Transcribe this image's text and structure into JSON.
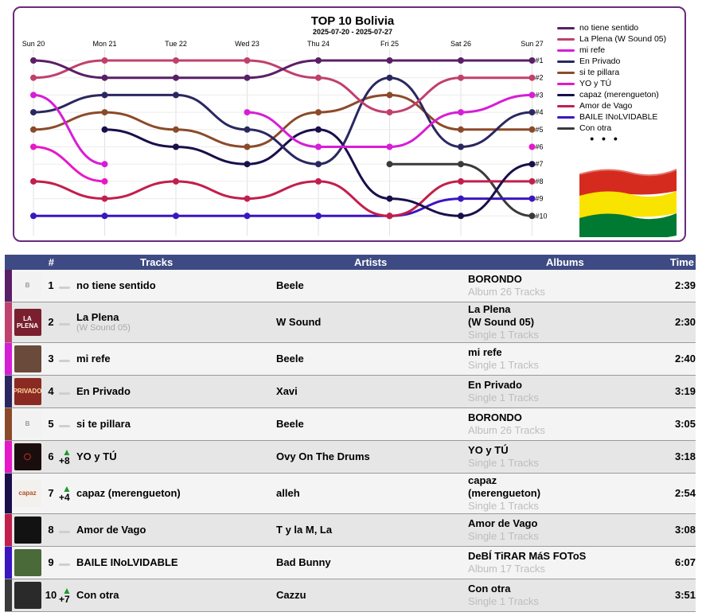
{
  "chart": {
    "title": "TOP 10 Bolivia",
    "subtitle": "2025-07-20 - 2025-07-27",
    "days": [
      "Sun 20",
      "Mon 21",
      "Tue 22",
      "Wed 23",
      "Thu 24",
      "Fri 25",
      "Sat 26",
      "Sun 27"
    ],
    "rank_labels": [
      "#1",
      "#2",
      "#3",
      "#4",
      "#5",
      "#6",
      "#7",
      "#8",
      "#9",
      "#10"
    ],
    "legend_more": "• • •"
  },
  "chart_data": {
    "type": "line",
    "title": "TOP 10 Bolivia",
    "subtitle": "2025-07-20 - 2025-07-27",
    "x": [
      "Sun 20",
      "Mon 21",
      "Tue 22",
      "Wed 23",
      "Thu 24",
      "Fri 25",
      "Sat 26",
      "Sun 27"
    ],
    "y_axis": "rank (inverted, #1 at top)",
    "ylim": [
      1,
      10
    ],
    "legend_position": "right",
    "series": [
      {
        "name": "no tiene sentido",
        "color": "#5a1f66",
        "values": [
          1,
          2,
          2,
          2,
          1,
          1,
          1,
          1
        ]
      },
      {
        "name": "La Plena (W Sound 05)",
        "color": "#c0406e",
        "values": [
          2,
          1,
          1,
          1,
          2,
          4,
          2,
          2
        ]
      },
      {
        "name": "mi refe",
        "color": "#d61ed6",
        "values": [
          3,
          7,
          null,
          4,
          6,
          6,
          4,
          3
        ]
      },
      {
        "name": "En Privado",
        "color": "#2a2760",
        "values": [
          4,
          3,
          3,
          5,
          7,
          2,
          6,
          4
        ]
      },
      {
        "name": "si te pillara",
        "color": "#8b4a2a",
        "values": [
          5,
          4,
          5,
          6,
          4,
          3,
          5,
          5
        ]
      },
      {
        "name": "YO y TÚ",
        "color": "#e619c8",
        "values": [
          6,
          8,
          null,
          null,
          null,
          null,
          null,
          6
        ]
      },
      {
        "name": "capaz (merengueton)",
        "color": "#1a0f4a",
        "values": [
          null,
          5,
          6,
          7,
          5,
          9,
          10,
          7
        ]
      },
      {
        "name": "Amor de Vago",
        "color": "#c21f4c",
        "values": [
          8,
          9,
          8,
          9,
          8,
          10,
          8,
          8
        ]
      },
      {
        "name": "BAILE INoLVIDABLE",
        "color": "#3a16c0",
        "values": [
          10,
          10,
          10,
          10,
          10,
          10,
          9,
          9
        ]
      },
      {
        "name": "Con otra",
        "color": "#3a3a3a",
        "values": [
          null,
          null,
          null,
          null,
          null,
          7,
          7,
          10
        ]
      }
    ]
  },
  "table": {
    "headers": {
      "rank": "#",
      "tracks": "Tracks",
      "artists": "Artists",
      "albums": "Albums",
      "time": "Time"
    },
    "rows": [
      {
        "rank": "1",
        "move": "",
        "title": "no tiene sentido",
        "title_sub": "",
        "artist": "Beele",
        "album": "BORONDO",
        "album_meta": "Album 26 Tracks",
        "time": "2:39",
        "color": "#5a1f66",
        "cover_color": "#f2f2f2",
        "cover_text": "B",
        "cover_text_color": "#999999"
      },
      {
        "rank": "2",
        "move": "",
        "title": "La Plena",
        "title_sub": "(W Sound 05)",
        "artist": "W Sound",
        "album": "La Plena\n(W Sound 05)",
        "album_meta": "Single 1 Tracks",
        "time": "2:30",
        "color": "#c0406e",
        "cover_color": "#7a1f2e",
        "cover_text": "LA PLENA",
        "cover_text_color": "#ffffff"
      },
      {
        "rank": "3",
        "move": "",
        "title": "mi refe",
        "title_sub": "",
        "artist": "Beele",
        "album": "mi refe",
        "album_meta": "Single 1 Tracks",
        "time": "2:40",
        "color": "#d61ed6",
        "cover_color": "#6a4a3a",
        "cover_text": "",
        "cover_text_color": "#ffffff"
      },
      {
        "rank": "4",
        "move": "",
        "title": "En Privado",
        "title_sub": "",
        "artist": "Xavi",
        "album": "En Privado",
        "album_meta": "Single 1 Tracks",
        "time": "3:19",
        "color": "#2a2760",
        "cover_color": "#8a2a22",
        "cover_text": "PRIVADO",
        "cover_text_color": "#ffd9a0"
      },
      {
        "rank": "5",
        "move": "",
        "title": "si te pillara",
        "title_sub": "",
        "artist": "Beele",
        "album": "BORONDO",
        "album_meta": "Album 26 Tracks",
        "time": "3:05",
        "color": "#8b4a2a",
        "cover_color": "#f2f2f2",
        "cover_text": "B",
        "cover_text_color": "#999999"
      },
      {
        "rank": "6",
        "move": "+8",
        "title": "YO y TÚ",
        "title_sub": "",
        "artist": "Ovy On The Drums",
        "album": "YO y TÚ",
        "album_meta": "Single 1 Tracks",
        "time": "3:18",
        "color": "#e619c8",
        "cover_color": "#1a0d0d",
        "cover_text": "◯",
        "cover_text_color": "#d83a1a"
      },
      {
        "rank": "7",
        "move": "+4",
        "title": "capaz (merengueton)",
        "title_sub": "",
        "artist": "alleh",
        "album": "capaz\n(merengueton)",
        "album_meta": "Single 1 Tracks",
        "time": "2:54",
        "color": "#1a0f4a",
        "cover_color": "#f3f1ee",
        "cover_text": "capaz",
        "cover_text_color": "#b0502a"
      },
      {
        "rank": "8",
        "move": "",
        "title": "Amor de Vago",
        "title_sub": "",
        "artist": "T y la M, La",
        "album": "Amor de Vago",
        "album_meta": "Single 1 Tracks",
        "time": "3:08",
        "color": "#c21f4c",
        "cover_color": "#121212",
        "cover_text": "",
        "cover_text_color": "#ffffff"
      },
      {
        "rank": "9",
        "move": "",
        "title": "BAILE INoLVIDABLE",
        "title_sub": "",
        "artist": "Bad Bunny",
        "album": "DeBÍ TiRAR MáS FOToS",
        "album_meta": "Album 17 Tracks",
        "time": "6:07",
        "color": "#3a16c0",
        "cover_color": "#4a6a3a",
        "cover_text": "",
        "cover_text_color": "#ffffff"
      },
      {
        "rank": "10",
        "move": "+7",
        "title": "Con otra",
        "title_sub": "",
        "artist": "Cazzu",
        "album": "Con otra",
        "album_meta": "Single 1 Tracks",
        "time": "3:51",
        "color": "#3a3a3a",
        "cover_color": "#2a2a2a",
        "cover_text": "",
        "cover_text_color": "#ffffff"
      }
    ]
  },
  "flag": {
    "colors": [
      "#d52b1e",
      "#f9e300",
      "#007a33"
    ]
  }
}
